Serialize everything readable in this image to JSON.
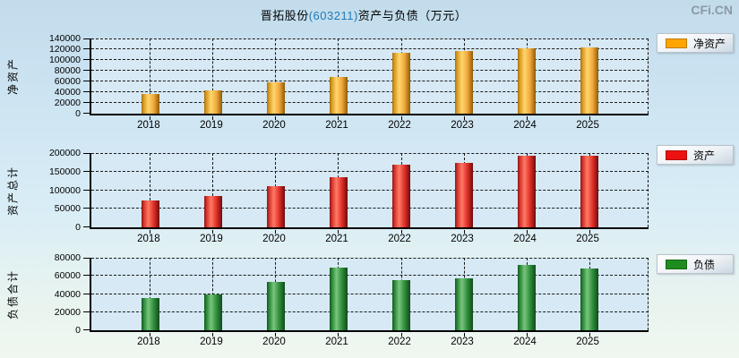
{
  "page": {
    "title": {
      "prefix": "晋拓股份",
      "code": "(603211)",
      "suffix": "资产与负债（万元）"
    },
    "logo": "CFi.CN"
  },
  "chart_data": [
    {
      "type": "bar",
      "title": "净资产",
      "ylabel": "净资产",
      "legend": "净资产",
      "legend_position": "right-top",
      "swatch": "#FFA500",
      "bar_style": "orange",
      "categories": [
        "2018",
        "2019",
        "2020",
        "2021",
        "2022",
        "2023",
        "2024",
        "2025"
      ],
      "values": [
        36000,
        44000,
        58000,
        68000,
        114000,
        117000,
        121000,
        124000
      ],
      "ylim": [
        0,
        140000
      ],
      "ytick_step": 20000,
      "grid": true
    },
    {
      "type": "bar",
      "title": "资产总计",
      "ylabel": "资产总计",
      "legend": "资产",
      "legend_position": "right-top",
      "swatch": "#EE1111",
      "bar_style": "red",
      "categories": [
        "2018",
        "2019",
        "2020",
        "2021",
        "2022",
        "2023",
        "2024",
        "2025"
      ],
      "values": [
        72000,
        84000,
        112000,
        136000,
        169000,
        174000,
        192000,
        192000
      ],
      "ylim": [
        0,
        200000
      ],
      "ytick_step": 50000,
      "grid": true
    },
    {
      "type": "bar",
      "title": "负债合计",
      "ylabel": "负债合计",
      "legend": "负债",
      "legend_position": "right-top",
      "swatch": "#1E8C1E",
      "bar_style": "green",
      "categories": [
        "2018",
        "2019",
        "2020",
        "2021",
        "2022",
        "2023",
        "2024",
        "2025"
      ],
      "values": [
        36000,
        39500,
        53000,
        69000,
        55000,
        57000,
        72000,
        68000
      ],
      "ylim": [
        0,
        80000
      ],
      "ytick_step": 20000,
      "grid": true
    }
  ]
}
